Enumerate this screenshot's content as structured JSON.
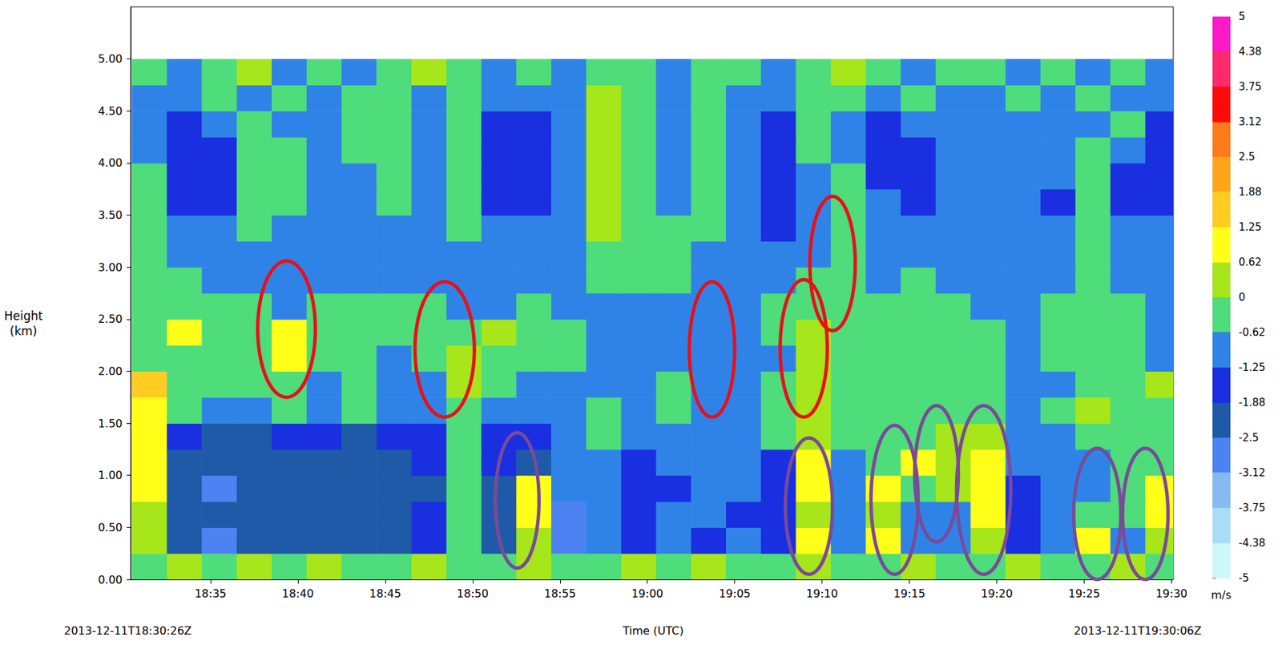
{
  "chart_data": {
    "type": "heatmap",
    "x_label": "Time (UTC)",
    "y_label": "Height (km)",
    "start_label": "2013-12-11T18:30:26Z",
    "end_label": "2013-12-11T19:30:06Z",
    "grid": false,
    "xlim": [
      1110.4333,
      1170.1
    ],
    "xticks": [
      {
        "value": 1115,
        "label": "18:35"
      },
      {
        "value": 1120,
        "label": "18:40"
      },
      {
        "value": 1125,
        "label": "18:45"
      },
      {
        "value": 1130,
        "label": "18:50"
      },
      {
        "value": 1135,
        "label": "18:55"
      },
      {
        "value": 1140,
        "label": "19:00"
      },
      {
        "value": 1145,
        "label": "19:05"
      },
      {
        "value": 1150,
        "label": "19:10"
      },
      {
        "value": 1155,
        "label": "19:15"
      },
      {
        "value": 1160,
        "label": "19:20"
      },
      {
        "value": 1165,
        "label": "19:25"
      },
      {
        "value": 1170,
        "label": "19:30"
      }
    ],
    "ylim": [
      0,
      5.5
    ],
    "yticks": [
      {
        "value": 0,
        "label": "0.00"
      },
      {
        "value": 0.5,
        "label": "0.50"
      },
      {
        "value": 1,
        "label": "1.00"
      },
      {
        "value": 1.5,
        "label": "1.50"
      },
      {
        "value": 2,
        "label": "2.00"
      },
      {
        "value": 2.5,
        "label": "2.50"
      },
      {
        "value": 3,
        "label": "3.00"
      },
      {
        "value": 3.5,
        "label": "3.50"
      },
      {
        "value": 4,
        "label": "4.00"
      },
      {
        "value": 4.5,
        "label": "4.50"
      },
      {
        "value": 5,
        "label": "5.00"
      }
    ],
    "x": [
      1111.5,
      1113.5,
      1115.5,
      1117.5,
      1119.5,
      1121.5,
      1123.5,
      1125.5,
      1127.5,
      1129.5,
      1131.5,
      1133.5,
      1135.5,
      1137.5,
      1139.5,
      1141.5,
      1143.5,
      1145.5,
      1147.5,
      1149.5,
      1151.5,
      1153.5,
      1155.5,
      1157.5,
      1159.5,
      1161.5,
      1163.5,
      1165.5,
      1167.5,
      1169.5
    ],
    "y": [
      0.125,
      0.375,
      0.625,
      0.875,
      1.125,
      1.375,
      1.625,
      1.875,
      2.125,
      2.375,
      2.625,
      2.875,
      3.125,
      3.375,
      3.625,
      3.875,
      4.125,
      4.375,
      4.625,
      4.875
    ],
    "cells": [
      [
        -0.3,
        0.3,
        -0.3,
        0.3,
        -0.3,
        0.3,
        -0.3,
        -0.3,
        0.3,
        -0.3,
        -0.3,
        0.3,
        -0.3,
        -0.3,
        0.3,
        -0.3,
        0.3,
        -0.3,
        -0.3,
        0.3,
        -0.3,
        -0.3,
        0.3,
        -0.3,
        -0.3,
        0.3,
        -0.3,
        -0.3,
        0.3,
        -0.3
      ],
      [
        0.3,
        -2.2,
        -2.8,
        -2.2,
        -2.2,
        -2.2,
        -2.2,
        -2.2,
        -1.5,
        -0.3,
        -2.2,
        0.3,
        -2.8,
        -0.9,
        -1.5,
        -0.9,
        -1.5,
        -0.9,
        -1.5,
        0.9,
        -0.9,
        0.9,
        -0.9,
        -0.9,
        0.3,
        -1.5,
        -0.9,
        0.9,
        -0.9,
        0.3
      ],
      [
        0.3,
        -2.2,
        -2.2,
        -2.2,
        -2.2,
        -2.2,
        -2.2,
        -2.2,
        -1.5,
        -0.3,
        -2.2,
        0.9,
        -2.8,
        -0.9,
        -1.5,
        -0.9,
        -0.9,
        -1.5,
        -1.5,
        0.3,
        -0.9,
        0.3,
        -0.9,
        -0.9,
        0.9,
        -1.5,
        -0.9,
        -0.3,
        -0.3,
        0.9
      ],
      [
        0.9,
        -2.2,
        -2.8,
        -2.2,
        -2.2,
        -2.2,
        -2.2,
        -2.2,
        -2.2,
        -0.3,
        -2.2,
        0.9,
        -0.9,
        -0.9,
        -1.5,
        -1.5,
        -0.9,
        -0.9,
        -1.5,
        0.9,
        -0.9,
        0.9,
        -0.3,
        0.3,
        0.9,
        -1.5,
        -0.9,
        -0.9,
        -0.3,
        0.9
      ],
      [
        0.9,
        -2.2,
        -2.2,
        -2.2,
        -2.2,
        -2.2,
        -2.2,
        -2.2,
        -1.5,
        -0.3,
        -1.5,
        -2.2,
        -0.9,
        -0.9,
        -1.5,
        -0.9,
        -0.9,
        -0.9,
        -1.5,
        0.9,
        -0.9,
        -0.3,
        0.9,
        0.3,
        0.9,
        -0.9,
        -0.9,
        -0.9,
        -0.3,
        -0.3
      ],
      [
        0.9,
        -1.5,
        -2.2,
        -2.2,
        -1.5,
        -1.5,
        -2.2,
        -1.5,
        -1.5,
        -0.3,
        -1.5,
        -1.5,
        -0.9,
        -0.3,
        -0.9,
        -0.9,
        -0.9,
        -0.9,
        -0.3,
        0.3,
        -0.3,
        -0.3,
        -0.3,
        0.3,
        0.3,
        -0.9,
        -0.9,
        -0.3,
        -0.3,
        -0.3
      ],
      [
        0.9,
        -0.3,
        -0.9,
        -0.9,
        -0.3,
        -0.9,
        -0.3,
        -0.9,
        -0.9,
        -0.3,
        -0.9,
        -0.9,
        -0.9,
        -0.3,
        -0.9,
        -0.3,
        -0.9,
        -0.9,
        -0.3,
        0.3,
        -0.3,
        -0.3,
        -0.3,
        -0.3,
        -0.3,
        -0.9,
        -0.3,
        0.3,
        -0.3,
        -0.3
      ],
      [
        1.5,
        -0.3,
        -0.3,
        -0.3,
        -0.3,
        -0.9,
        -0.3,
        -0.9,
        -0.9,
        0.3,
        -0.3,
        -0.9,
        -0.9,
        -0.9,
        -0.9,
        -0.3,
        -0.9,
        -0.9,
        -0.3,
        0.3,
        -0.3,
        -0.3,
        -0.3,
        -0.3,
        -0.3,
        -0.9,
        -0.9,
        -0.3,
        -0.3,
        0.3
      ],
      [
        -0.3,
        -0.3,
        -0.3,
        -0.3,
        0.9,
        -0.3,
        -0.3,
        -0.9,
        -0.3,
        0.3,
        -0.3,
        -0.3,
        -0.3,
        -0.9,
        -0.9,
        -0.9,
        -0.9,
        -0.9,
        -0.9,
        0.3,
        -0.3,
        -0.3,
        -0.3,
        -0.3,
        -0.3,
        -0.9,
        -0.3,
        -0.3,
        -0.3,
        -0.9
      ],
      [
        -0.3,
        0.9,
        -0.3,
        -0.3,
        0.9,
        -0.3,
        -0.3,
        -0.3,
        -0.3,
        -0.3,
        0.3,
        -0.3,
        -0.3,
        -0.9,
        -0.9,
        -0.9,
        -0.9,
        -0.9,
        -0.3,
        0.3,
        -0.3,
        -0.3,
        -0.3,
        -0.3,
        -0.3,
        -0.9,
        -0.3,
        -0.3,
        -0.3,
        -0.9
      ],
      [
        -0.3,
        -0.3,
        -0.3,
        -0.3,
        -0.9,
        -0.3,
        -0.3,
        -0.3,
        -0.3,
        -0.9,
        -0.9,
        -0.3,
        -0.9,
        -0.9,
        -0.9,
        -0.9,
        -0.9,
        -0.9,
        -0.3,
        -0.3,
        -0.3,
        -0.3,
        -0.3,
        -0.3,
        -0.9,
        -0.9,
        -0.3,
        -0.3,
        -0.3,
        -0.9
      ],
      [
        -0.3,
        -0.3,
        -0.9,
        -0.9,
        -0.9,
        -0.9,
        -0.9,
        -0.9,
        -0.9,
        -0.9,
        -0.9,
        -0.9,
        -0.9,
        -0.3,
        -0.3,
        -0.3,
        -0.9,
        -0.9,
        -0.9,
        -0.3,
        -0.3,
        -0.9,
        -0.3,
        -0.9,
        -0.9,
        -0.9,
        -0.9,
        -0.3,
        -0.9,
        -0.9
      ],
      [
        -0.3,
        -0.9,
        -0.9,
        -0.9,
        -0.9,
        -0.9,
        -0.9,
        -0.9,
        -0.9,
        -0.9,
        -0.9,
        -0.9,
        -0.9,
        -0.3,
        -0.3,
        -0.3,
        -0.9,
        -0.9,
        -0.9,
        -0.9,
        -0.3,
        -0.9,
        -0.9,
        -0.9,
        -0.9,
        -0.9,
        -0.9,
        -0.3,
        -0.9,
        -0.9
      ],
      [
        -0.3,
        -0.9,
        -0.9,
        -0.3,
        -0.9,
        -0.9,
        -0.9,
        -0.9,
        -0.9,
        -0.3,
        -0.9,
        -0.9,
        -0.9,
        0.3,
        -0.3,
        -0.3,
        -0.3,
        -0.9,
        -1.5,
        -0.9,
        -0.3,
        -0.9,
        -0.9,
        -0.9,
        -0.9,
        -0.9,
        -0.9,
        -0.3,
        -0.9,
        -0.9
      ],
      [
        -0.3,
        -1.5,
        -1.5,
        -0.3,
        -0.3,
        -0.9,
        -0.9,
        -0.3,
        -0.9,
        -0.3,
        -1.5,
        -1.5,
        -0.9,
        0.3,
        -0.3,
        -0.9,
        -0.3,
        -0.9,
        -1.5,
        -0.9,
        -0.3,
        -0.9,
        -1.5,
        -0.9,
        -0.9,
        -0.9,
        -1.5,
        -0.3,
        -1.5,
        -1.5
      ],
      [
        -0.3,
        -1.5,
        -1.5,
        -0.3,
        -0.3,
        -0.9,
        -0.9,
        -0.3,
        -0.9,
        -0.3,
        -1.5,
        -1.5,
        -0.9,
        0.3,
        -0.3,
        -0.9,
        -0.3,
        -0.9,
        -1.5,
        -0.9,
        -0.3,
        -1.5,
        -1.5,
        -0.9,
        -0.9,
        -0.9,
        -0.9,
        -0.3,
        -1.5,
        -1.5
      ],
      [
        -0.9,
        -1.5,
        -1.5,
        -0.3,
        -0.3,
        -0.9,
        -0.3,
        -0.3,
        -0.9,
        -0.3,
        -1.5,
        -1.5,
        -0.9,
        0.3,
        -0.3,
        -0.9,
        -0.3,
        -0.9,
        -1.5,
        -0.3,
        -0.9,
        -1.5,
        -1.5,
        -0.9,
        -0.9,
        -0.9,
        -0.9,
        -0.3,
        -0.9,
        -1.5
      ],
      [
        -0.9,
        -1.5,
        -0.9,
        -0.3,
        -0.9,
        -0.9,
        -0.3,
        -0.3,
        -0.9,
        -0.3,
        -1.5,
        -1.5,
        -0.9,
        0.3,
        -0.3,
        -0.9,
        -0.3,
        -0.9,
        -1.5,
        -0.3,
        -0.9,
        -1.5,
        -0.9,
        -0.9,
        -0.9,
        -0.9,
        -0.9,
        -0.9,
        -0.3,
        -1.5
      ],
      [
        -0.9,
        -0.9,
        -0.3,
        -0.9,
        -0.3,
        -0.9,
        -0.3,
        -0.3,
        -0.9,
        -0.3,
        -0.9,
        -0.9,
        -0.9,
        0.3,
        -0.3,
        -0.9,
        -0.3,
        -0.9,
        -0.9,
        -0.3,
        -0.3,
        -0.9,
        -0.3,
        -0.9,
        -0.9,
        -0.3,
        -0.9,
        -0.3,
        -0.9,
        -0.9
      ],
      [
        -0.3,
        -0.9,
        -0.3,
        0.3,
        -0.9,
        -0.3,
        -0.9,
        -0.3,
        0.3,
        -0.3,
        -0.9,
        -0.3,
        -0.9,
        -0.3,
        -0.3,
        -0.9,
        -0.3,
        -0.3,
        -0.9,
        -0.3,
        0.3,
        -0.3,
        -0.9,
        -0.3,
        -0.3,
        -0.9,
        -0.3,
        -0.9,
        -0.3,
        -0.9
      ]
    ],
    "colorbar": {
      "label": "m/s",
      "range": [
        -5,
        5
      ],
      "ticks": [
        5,
        4.38,
        3.75,
        3.12,
        2.5,
        1.88,
        1.25,
        0.62,
        0,
        -0.62,
        -1.25,
        -1.88,
        -2.5,
        -3.12,
        -3.75,
        -4.38,
        -5
      ],
      "colors": [
        "#ff19c8",
        "#ff2a6a",
        "#ff0a0a",
        "#ff7a1a",
        "#ffa51a",
        "#ffcc22",
        "#ffff1a",
        "#a6e61a",
        "#4fdc7a",
        "#2f83e6",
        "#1a2fe0",
        "#1f5aa8",
        "#4d82f2",
        "#86bbf2",
        "#a9dcf5",
        "#ccf8fa"
      ]
    },
    "ellipses": [
      {
        "color": "#e8101a",
        "x_range": [
          1117.7,
          1121.0
        ],
        "y_range": [
          1.75,
          3.06
        ]
      },
      {
        "color": "#e8101a",
        "x_range": [
          1126.7,
          1130.1
        ],
        "y_range": [
          1.56,
          2.86
        ]
      },
      {
        "color": "#e8101a",
        "x_range": [
          1142.4,
          1145.0
        ],
        "y_range": [
          1.56,
          2.86
        ]
      },
      {
        "color": "#e8101a",
        "x_range": [
          1147.6,
          1150.3
        ],
        "y_range": [
          1.56,
          2.88
        ]
      },
      {
        "color": "#e8101a",
        "x_range": [
          1149.3,
          1151.9
        ],
        "y_range": [
          2.39,
          3.68
        ]
      },
      {
        "color": "#7a4a9a",
        "x_range": [
          1131.3,
          1133.8
        ],
        "y_range": [
          0.11,
          1.41
        ]
      },
      {
        "color": "#7a4a9a",
        "x_range": [
          1147.9,
          1150.6
        ],
        "y_range": [
          0.05,
          1.36
        ]
      },
      {
        "color": "#7a4a9a",
        "x_range": [
          1152.8,
          1155.5
        ],
        "y_range": [
          0.05,
          1.48
        ]
      },
      {
        "color": "#7a4a9a",
        "x_range": [
          1155.3,
          1157.8
        ],
        "y_range": [
          0.36,
          1.67
        ]
      },
      {
        "color": "#7a4a9a",
        "x_range": [
          1157.7,
          1160.8
        ],
        "y_range": [
          0.05,
          1.67
        ]
      },
      {
        "color": "#7a4a9a",
        "x_range": [
          1164.4,
          1167.1
        ],
        "y_range": [
          0.0,
          1.26
        ]
      },
      {
        "color": "#7a4a9a",
        "x_range": [
          1167.2,
          1169.8
        ],
        "y_range": [
          0.0,
          1.26
        ]
      }
    ]
  }
}
